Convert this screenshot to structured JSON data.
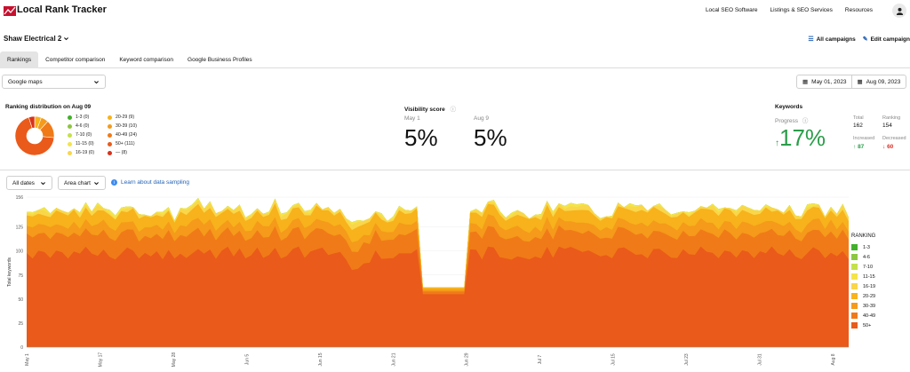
{
  "app": {
    "title": "Local Rank Tracker"
  },
  "nav": {
    "items": [
      "Local SEO Software",
      "Listings & SEO Services",
      "Resources"
    ]
  },
  "project": {
    "name": "Shaw Electrical 2",
    "all_campaigns": "All campaigns",
    "edit_campaign": "Edit campaign"
  },
  "tabs": [
    "Rankings",
    "Competitor comparison",
    "Keyword comparison",
    "Google Business Profiles"
  ],
  "filters": {
    "source": "Google maps",
    "date_start": "May 01, 2023",
    "date_end": "Aug 09, 2023"
  },
  "distribution": {
    "title": "Ranking distribution on Aug 09",
    "items": [
      {
        "label": "1-3 (0)",
        "color": "#43b02a",
        "value": 0
      },
      {
        "label": "4-6 (0)",
        "color": "#8dc63f",
        "value": 0
      },
      {
        "label": "7-10 (0)",
        "color": "#c5e04a",
        "value": 0
      },
      {
        "label": "11-15 (0)",
        "color": "#f4e44a",
        "value": 0
      },
      {
        "label": "16-19 (0)",
        "color": "#f9d64a",
        "value": 0
      },
      {
        "label": "20-29 (9)",
        "color": "#f7b21c",
        "value": 9
      },
      {
        "label": "30-39 (10)",
        "color": "#f59a1a",
        "value": 10
      },
      {
        "label": "40-49 (24)",
        "color": "#f07a18",
        "value": 24
      },
      {
        "label": "50+ (111)",
        "color": "#ea5a1a",
        "value": 111
      },
      {
        "label": "— (8)",
        "color": "#d9321c",
        "value": 8
      }
    ]
  },
  "visibility": {
    "title": "Visibility score",
    "left_label": "May 1",
    "left_value": "5%",
    "right_label": "Aug 9",
    "right_value": "5%"
  },
  "keywords": {
    "title": "Keywords",
    "progress_label": "Progress",
    "progress_value": "17%",
    "total_label": "Total",
    "total_value": "162",
    "ranking_label": "Ranking",
    "ranking_value": "154",
    "increased_label": "Increased",
    "increased_value": "87",
    "decreased_label": "Decreased",
    "decreased_value": "60"
  },
  "chart_controls": {
    "range": "All dates",
    "chart_type": "Area chart",
    "info_link": "Learn about data sampling"
  },
  "colors": {
    "accent": "#2563b5",
    "positive": "#2a9d4a",
    "negative": "#d93025"
  },
  "chart_data": {
    "type": "area",
    "ylabel": "Total keywords",
    "ylim": [
      0,
      156
    ],
    "yticks": [
      0,
      25,
      50,
      75,
      100,
      125,
      156
    ],
    "x_tick_labels": [
      "May 1",
      "May 17",
      "May 28",
      "Jun 5",
      "Jun 15",
      "Jun 21",
      "Jun 29",
      "Jul 7",
      "Jul 15",
      "Jul 23",
      "Jul 31",
      "Aug 8"
    ],
    "legend_title": "RANKING",
    "series": [
      {
        "name": "50+",
        "color": "#ea5a1a",
        "baseline": 98,
        "dip": 55
      },
      {
        "name": "40-49",
        "color": "#f07a18",
        "baseline": 20,
        "dip": 3
      },
      {
        "name": "30-39",
        "color": "#f59a1a",
        "baseline": 10,
        "dip": 2
      },
      {
        "name": "20-29",
        "color": "#f7b21c",
        "baseline": 12,
        "dip": 2
      },
      {
        "name": "16-19",
        "color": "#f9d64a",
        "baseline": 3,
        "dip": 0
      },
      {
        "name": "11-15",
        "color": "#f4e44a",
        "baseline": 1,
        "dip": 0
      },
      {
        "name": "7-10",
        "color": "#c5e04a",
        "baseline": 0,
        "dip": 0
      },
      {
        "name": "4-6",
        "color": "#8dc63f",
        "baseline": 0,
        "dip": 0
      },
      {
        "name": "1-3",
        "color": "#43b02a",
        "baseline": 0,
        "dip": 0
      }
    ],
    "dip_start_fraction": 0.475,
    "dip_end_fraction": 0.535
  }
}
